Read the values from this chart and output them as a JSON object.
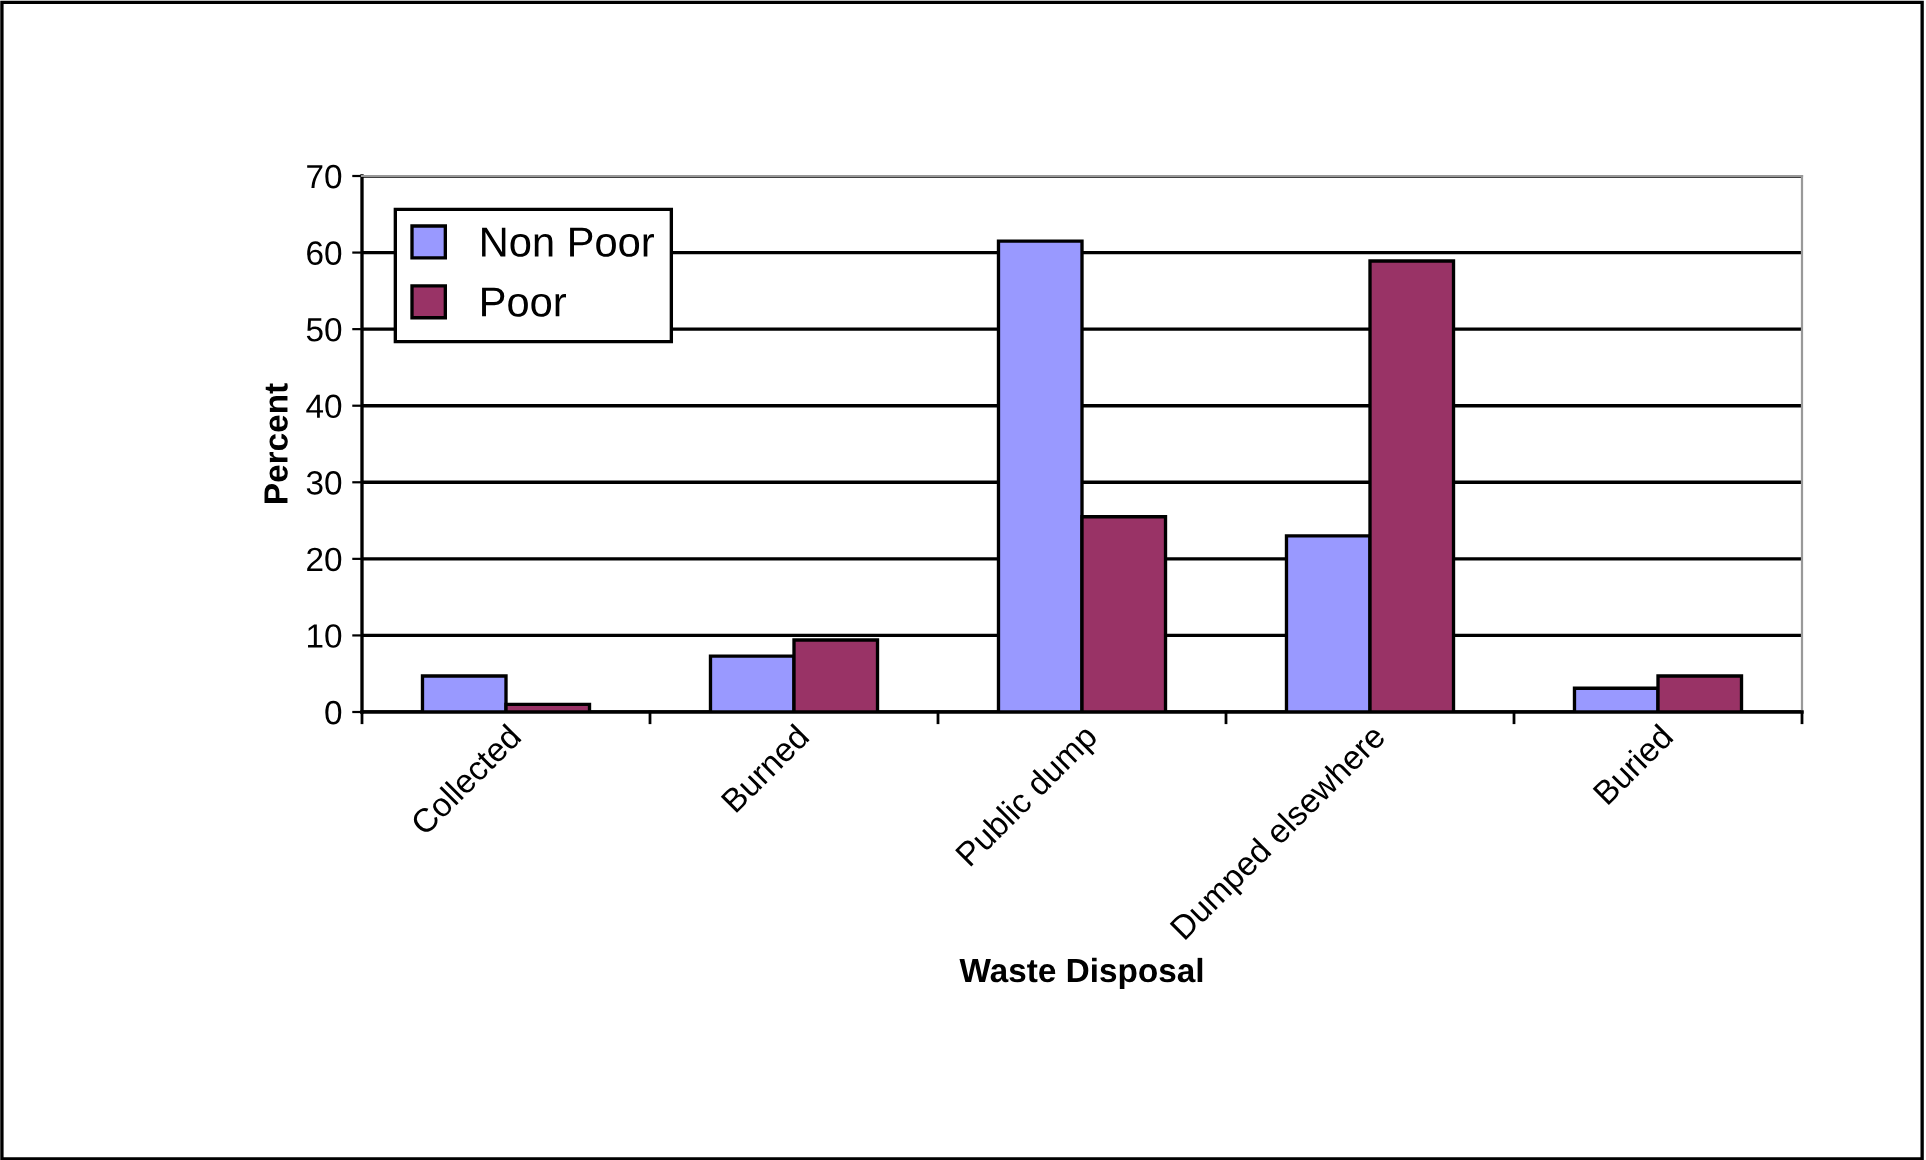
{
  "chart_data": {
    "type": "bar",
    "xlabel": "Waste Disposal",
    "ylabel": "Percent",
    "categories": [
      "Collected",
      "Burned",
      "Public dump",
      "Dumped elsewhere",
      "Buried"
    ],
    "series": [
      {
        "name": "Non Poor",
        "color": "#9999ff",
        "values": [
          4.7,
          7.3,
          61.5,
          23.0,
          3.1
        ]
      },
      {
        "name": "Poor",
        "color": "#993366",
        "values": [
          1.0,
          9.4,
          25.5,
          58.9,
          4.7
        ]
      }
    ],
    "ylim": [
      0,
      70
    ],
    "yticks": [
      0,
      10,
      20,
      30,
      40,
      50,
      60,
      70
    ],
    "grid": "y",
    "legend": "top left"
  }
}
